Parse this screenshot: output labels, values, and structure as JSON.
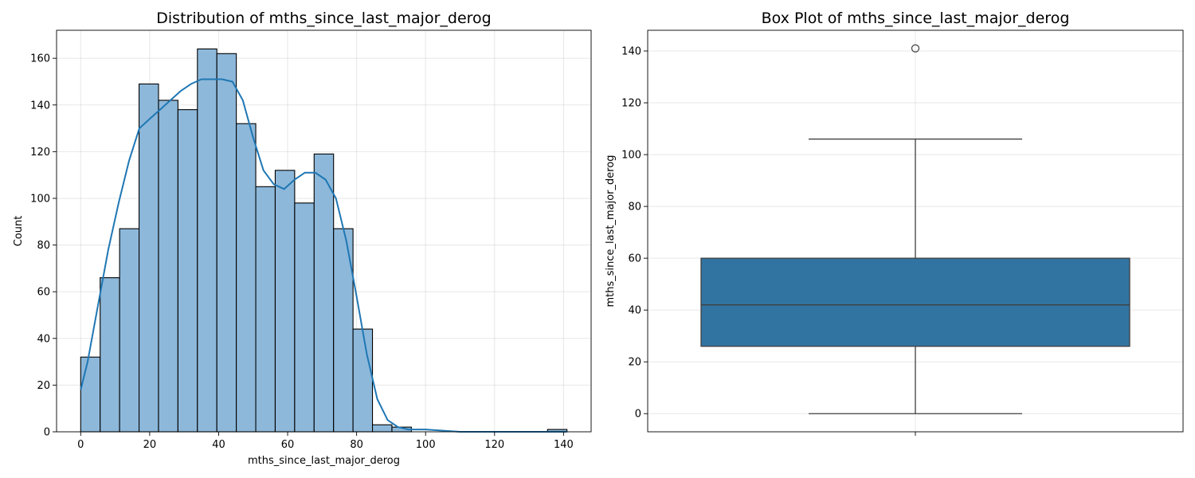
{
  "chart_data": [
    {
      "type": "histogram",
      "title": "Distribution of mths_since_last_major_derog",
      "xlabel": "mths_since_last_major_derog",
      "ylabel": "Count",
      "xlim": [
        -7,
        148
      ],
      "ylim": [
        0,
        172
      ],
      "xticks": [
        0,
        20,
        40,
        60,
        80,
        100,
        120,
        140
      ],
      "yticks": [
        0,
        20,
        40,
        60,
        80,
        100,
        120,
        140,
        160
      ],
      "grid": true,
      "bin_width": 5.64,
      "bins_start": [
        0,
        5.64,
        11.28,
        16.92,
        22.56,
        28.2,
        33.84,
        39.48,
        45.12,
        50.76,
        56.4,
        62.04,
        67.68,
        73.32,
        78.96,
        84.6,
        90.24,
        95.88,
        101.52,
        107.16,
        112.8,
        118.44,
        124.08,
        129.72,
        135.36
      ],
      "counts": [
        32,
        66,
        87,
        149,
        142,
        138,
        164,
        162,
        132,
        105,
        112,
        98,
        119,
        87,
        44,
        3,
        2,
        0,
        0,
        0,
        0,
        0,
        0,
        0,
        1
      ],
      "kde": {
        "x": [
          0,
          2,
          5,
          8,
          11,
          14,
          17,
          20,
          23,
          26,
          29,
          32,
          35,
          38,
          41,
          44,
          47,
          50,
          53,
          56,
          59,
          62,
          65,
          68,
          71,
          74,
          77,
          80,
          83,
          86,
          89,
          92,
          95,
          100,
          110,
          120,
          130,
          135,
          141
        ],
        "y": [
          18,
          30,
          54,
          78,
          98,
          116,
          130,
          134,
          138,
          142,
          146,
          149,
          151,
          151,
          151,
          150,
          142,
          126,
          112,
          106,
          104,
          108,
          111,
          111,
          108,
          100,
          82,
          58,
          33,
          14,
          5,
          2,
          1,
          1,
          0,
          0,
          0,
          0,
          0
        ]
      }
    },
    {
      "type": "box",
      "title": "Box Plot of mths_since_last_major_derog",
      "ylabel": "mths_since_last_major_derog",
      "ylim": [
        -7,
        148
      ],
      "yticks": [
        0,
        20,
        40,
        60,
        80,
        100,
        120,
        140
      ],
      "grid": true,
      "q1": 26,
      "median": 42,
      "q3": 60,
      "whisker_low": 0,
      "whisker_high": 106,
      "outliers": [
        141
      ]
    }
  ],
  "colors": {
    "hist_fill": "#8db8da",
    "hist_edge": "#000000",
    "kde_line": "#1f77b4",
    "box_fill": "#3274a1",
    "box_edge": "#3f3f3f"
  }
}
